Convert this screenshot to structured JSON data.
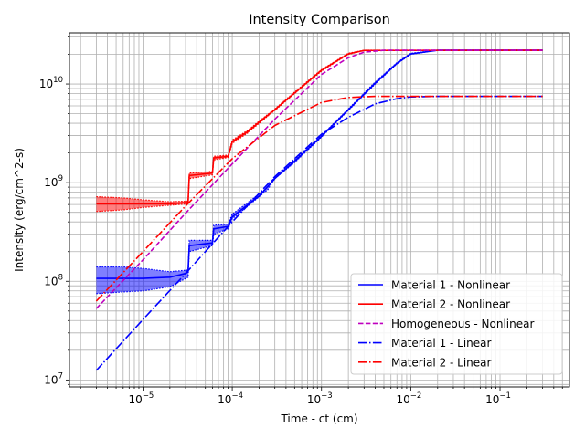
{
  "chart_data": {
    "type": "line",
    "title": "Intensity Comparison",
    "xlabel": "Time - ct (cm)",
    "ylabel": "Intensity (erg/cm^2-s)",
    "xscale": "log",
    "yscale": "log",
    "xlim": [
      1.5e-06,
      0.6
    ],
    "ylim": [
      8500000.0,
      33000000000.0
    ],
    "grid": true,
    "legend_position": "lower right",
    "x_ticks": [
      {
        "value": 1e-05,
        "mantissa": "10",
        "exp": "−5"
      },
      {
        "value": 0.0001,
        "mantissa": "10",
        "exp": "−4"
      },
      {
        "value": 0.001,
        "mantissa": "10",
        "exp": "−3"
      },
      {
        "value": 0.01,
        "mantissa": "10",
        "exp": "−2"
      },
      {
        "value": 0.1,
        "mantissa": "10",
        "exp": "−1"
      }
    ],
    "y_ticks": [
      {
        "value": 10000000.0,
        "mantissa": "10",
        "exp": "7"
      },
      {
        "value": 100000000.0,
        "mantissa": "10",
        "exp": "8"
      },
      {
        "value": 1000000000.0,
        "mantissa": "10",
        "exp": "9"
      },
      {
        "value": 10000000000.0,
        "mantissa": "10",
        "exp": "10"
      }
    ],
    "series": [
      {
        "name": "Material 1 - Nonlinear",
        "color": "#0000ff",
        "style": "solid",
        "band_low": [
          [
            3e-06,
            75000000.0
          ],
          [
            6e-06,
            78000000.0
          ],
          [
            1e-05,
            80000000.0
          ],
          [
            2e-05,
            88000000.0
          ],
          [
            3.2e-05,
            110000000.0
          ],
          [
            3.3e-05,
            200000000.0
          ],
          [
            6e-05,
            230000000.0
          ],
          [
            6.2e-05,
            300000000.0
          ],
          [
            9e-05,
            340000000.0
          ],
          [
            0.0001,
            430000000.0
          ],
          [
            0.00015,
            580000000.0
          ],
          [
            0.00025,
            850000000.0
          ],
          [
            0.0003,
            1100000000.0
          ],
          [
            0.0005,
            1600000000.0
          ],
          [
            0.001,
            2900000000.0
          ],
          [
            0.002,
            5400000000.0
          ],
          [
            0.004,
            10000000000.0
          ],
          [
            0.007,
            16000000000.0
          ],
          [
            0.01,
            20000000000.0
          ],
          [
            0.02,
            22000000000.0
          ],
          [
            0.3,
            22000000000.0
          ]
        ],
        "band_high": [
          [
            3e-06,
            140000000.0
          ],
          [
            6e-06,
            140000000.0
          ],
          [
            1e-05,
            135000000.0
          ],
          [
            2e-05,
            125000000.0
          ],
          [
            3.2e-05,
            130000000.0
          ],
          [
            3.3e-05,
            260000000.0
          ],
          [
            6e-05,
            260000000.0
          ],
          [
            6.2e-05,
            370000000.0
          ],
          [
            9e-05,
            380000000.0
          ],
          [
            0.0001,
            480000000.0
          ],
          [
            0.00015,
            630000000.0
          ],
          [
            0.00025,
            900000000.0
          ],
          [
            0.0003,
            1150000000.0
          ],
          [
            0.0005,
            1700000000.0
          ],
          [
            0.001,
            3000000000.0
          ],
          [
            0.002,
            5600000000.0
          ],
          [
            0.004,
            10500000000.0
          ],
          [
            0.007,
            16500000000.0
          ],
          [
            0.01,
            20500000000.0
          ],
          [
            0.02,
            22000000000.0
          ],
          [
            0.3,
            22000000000.0
          ]
        ],
        "values": [
          [
            3e-06,
            107000000.0
          ],
          [
            1e-05,
            107000000.0
          ],
          [
            2e-05,
            110000000.0
          ],
          [
            3e-05,
            120000000.0
          ],
          [
            3.2e-05,
            125000000.0
          ],
          [
            3.3e-05,
            230000000.0
          ],
          [
            6e-05,
            245000000.0
          ],
          [
            6.2e-05,
            340000000.0
          ],
          [
            9e-05,
            360000000.0
          ],
          [
            0.0001,
            450000000.0
          ],
          [
            0.00015,
            600000000.0
          ],
          [
            0.0002,
            730000000.0
          ],
          [
            0.0003,
            1100000000.0
          ],
          [
            0.0005,
            1650000000.0
          ],
          [
            0.001,
            2950000000.0
          ],
          [
            0.002,
            5500000000.0
          ],
          [
            0.004,
            10200000000.0
          ],
          [
            0.007,
            16200000000.0
          ],
          [
            0.01,
            20200000000.0
          ],
          [
            0.02,
            22000000000.0
          ],
          [
            0.3,
            22000000000.0
          ]
        ]
      },
      {
        "name": "Material 2 - Nonlinear",
        "color": "#ff0000",
        "style": "solid",
        "band_low": [
          [
            3e-06,
            510000000.0
          ],
          [
            6e-06,
            530000000.0
          ],
          [
            1e-05,
            560000000.0
          ],
          [
            2e-05,
            590000000.0
          ],
          [
            3.2e-05,
            610000000.0
          ],
          [
            3.3e-05,
            1100000000.0
          ],
          [
            6e-05,
            1200000000.0
          ],
          [
            6.2e-05,
            1700000000.0
          ],
          [
            9e-05,
            1800000000.0
          ],
          [
            0.0001,
            2500000000.0
          ],
          [
            0.00015,
            3200000000.0
          ],
          [
            0.0002,
            4000000000.0
          ],
          [
            0.0003,
            5400000000.0
          ],
          [
            0.0005,
            8000000000.0
          ],
          [
            0.001,
            13500000000.0
          ],
          [
            0.002,
            20000000000.0
          ],
          [
            0.003,
            21800000000.0
          ],
          [
            0.3,
            22000000000.0
          ]
        ],
        "band_high": [
          [
            3e-06,
            720000000.0
          ],
          [
            6e-06,
            700000000.0
          ],
          [
            1e-05,
            670000000.0
          ],
          [
            2e-05,
            640000000.0
          ],
          [
            3.2e-05,
            650000000.0
          ],
          [
            3.3e-05,
            1250000000.0
          ],
          [
            6e-05,
            1300000000.0
          ],
          [
            6.2e-05,
            1850000000.0
          ],
          [
            9e-05,
            1900000000.0
          ],
          [
            0.0001,
            2700000000.0
          ],
          [
            0.00015,
            3400000000.0
          ],
          [
            0.0002,
            4200000000.0
          ],
          [
            0.0003,
            5600000000.0
          ],
          [
            0.0005,
            8300000000.0
          ],
          [
            0.001,
            14000000000.0
          ],
          [
            0.002,
            20500000000.0
          ],
          [
            0.003,
            22000000000.0
          ],
          [
            0.3,
            22000000000.0
          ]
        ],
        "values": [
          [
            3e-06,
            610000000.0
          ],
          [
            1e-05,
            610000000.0
          ],
          [
            2e-05,
            610000000.0
          ],
          [
            3.2e-05,
            630000000.0
          ],
          [
            3.3e-05,
            1180000000.0
          ],
          [
            6e-05,
            1250000000.0
          ],
          [
            6.2e-05,
            1780000000.0
          ],
          [
            9e-05,
            1850000000.0
          ],
          [
            0.0001,
            2600000000.0
          ],
          [
            0.00015,
            3300000000.0
          ],
          [
            0.0002,
            4100000000.0
          ],
          [
            0.0003,
            5500000000.0
          ],
          [
            0.0005,
            8100000000.0
          ],
          [
            0.001,
            13800000000.0
          ],
          [
            0.002,
            20200000000.0
          ],
          [
            0.003,
            21900000000.0
          ],
          [
            0.3,
            22000000000.0
          ]
        ]
      },
      {
        "name": "Homogeneous - Nonlinear",
        "color": "#bf00bf",
        "style": "dashed",
        "values": [
          [
            3e-06,
            53000000.0
          ],
          [
            1e-05,
            165000000.0
          ],
          [
            3e-05,
            490000000.0
          ],
          [
            0.0001,
            1550000000.0
          ],
          [
            0.0003,
            4400000000.0
          ],
          [
            0.001,
            12500000000.0
          ],
          [
            0.002,
            18500000000.0
          ],
          [
            0.003,
            21000000000.0
          ],
          [
            0.005,
            22000000000.0
          ],
          [
            0.3,
            22000000000.0
          ]
        ]
      },
      {
        "name": "Material 1 - Linear",
        "color": "#0000ff",
        "style": "dashdot",
        "values": [
          [
            3e-06,
            12500000.0
          ],
          [
            1e-05,
            41000000.0
          ],
          [
            3e-05,
            120000000.0
          ],
          [
            0.0001,
            400000000.0
          ],
          [
            0.0003,
            1150000000.0
          ],
          [
            0.001,
            3100000000.0
          ],
          [
            0.002,
            4600000000.0
          ],
          [
            0.004,
            6300000000.0
          ],
          [
            0.007,
            7100000000.0
          ],
          [
            0.01,
            7400000000.0
          ],
          [
            0.02,
            7500000000.0
          ],
          [
            0.3,
            7500000000.0
          ]
        ]
      },
      {
        "name": "Material 2 - Linear",
        "color": "#ff0000",
        "style": "dashdot",
        "values": [
          [
            3e-06,
            63000000.0
          ],
          [
            1e-05,
            200000000.0
          ],
          [
            3e-05,
            580000000.0
          ],
          [
            0.0001,
            1750000000.0
          ],
          [
            0.0003,
            3800000000.0
          ],
          [
            0.001,
            6500000000.0
          ],
          [
            0.002,
            7300000000.0
          ],
          [
            0.004,
            7500000000.0
          ],
          [
            0.3,
            7500000000.0
          ]
        ]
      }
    ]
  }
}
